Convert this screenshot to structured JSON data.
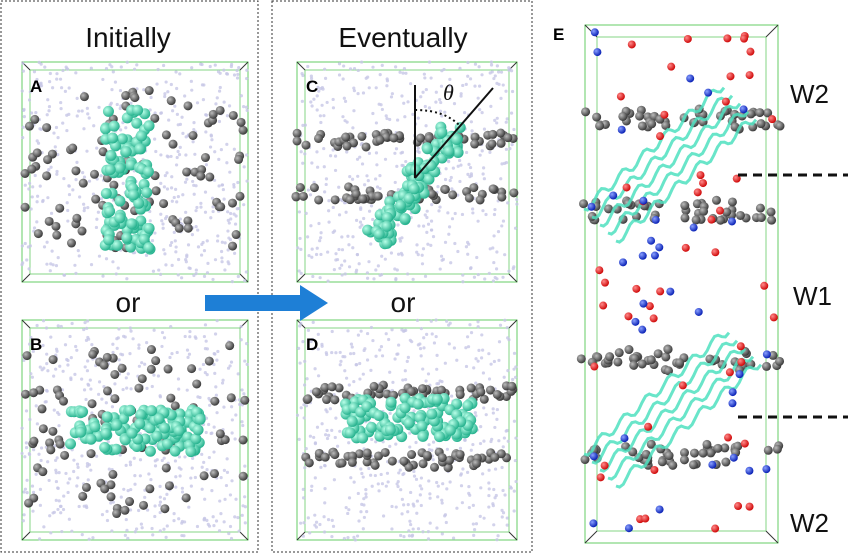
{
  "left_panel": {
    "title": "Initially",
    "separator": "or"
  },
  "middle_panel": {
    "title": "Eventually",
    "separator": "or"
  },
  "panels": [
    {
      "label": "A"
    },
    {
      "label": "B"
    },
    {
      "label": "C"
    },
    {
      "label": "D"
    },
    {
      "label": "E"
    }
  ],
  "angle_label": "θ",
  "regions": [
    "W2",
    "W1",
    "W2"
  ]
}
